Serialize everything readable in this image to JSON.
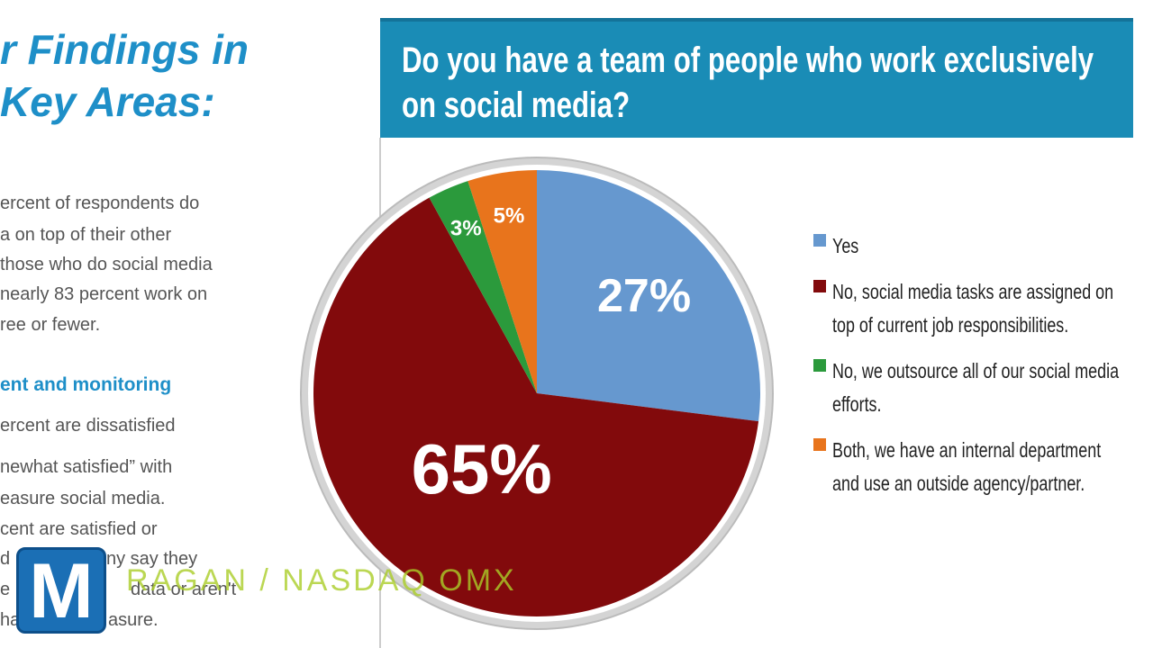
{
  "left_panel": {
    "heading": [
      "r Findings in",
      "Key Areas:"
    ],
    "paragraph_1": [
      "ercent of respondents do",
      "a on top of their other",
      "those who do social media",
      "nearly 83 percent work on",
      "ree or fewer."
    ],
    "subheading": "ent and monitoring",
    "paragraph_2": [
      [
        "ercent are dissatisfied"
      ],
      [
        "newhat satisfied” with"
      ],
      [
        "easure social media."
      ],
      [
        "cent are satisfied or"
      ],
      [
        "d",
        "ny say they"
      ],
      [
        "e",
        "data or aren't"
      ],
      [
        "ha",
        "asure."
      ]
    ]
  },
  "overlay": {
    "logo": "M",
    "credit": "RAGAN / NASDAQ OMX"
  },
  "chart_data": {
    "type": "pie",
    "title": "Do you have a team of people who work exclusively on social media?",
    "categories": [
      "Yes",
      "No, social media tasks are assigned on top of current job responsibilities.",
      "No, we outsource all of our social media efforts.",
      "Both, we have an internal department and use an outside agency/partner."
    ],
    "values": [
      27,
      65,
      3,
      5
    ],
    "value_labels": [
      "27%",
      "65%",
      "3%",
      "5%"
    ],
    "colors": [
      "#6698cf",
      "#820a0c",
      "#2b9a3c",
      "#e8741c"
    ],
    "legend": "right"
  }
}
